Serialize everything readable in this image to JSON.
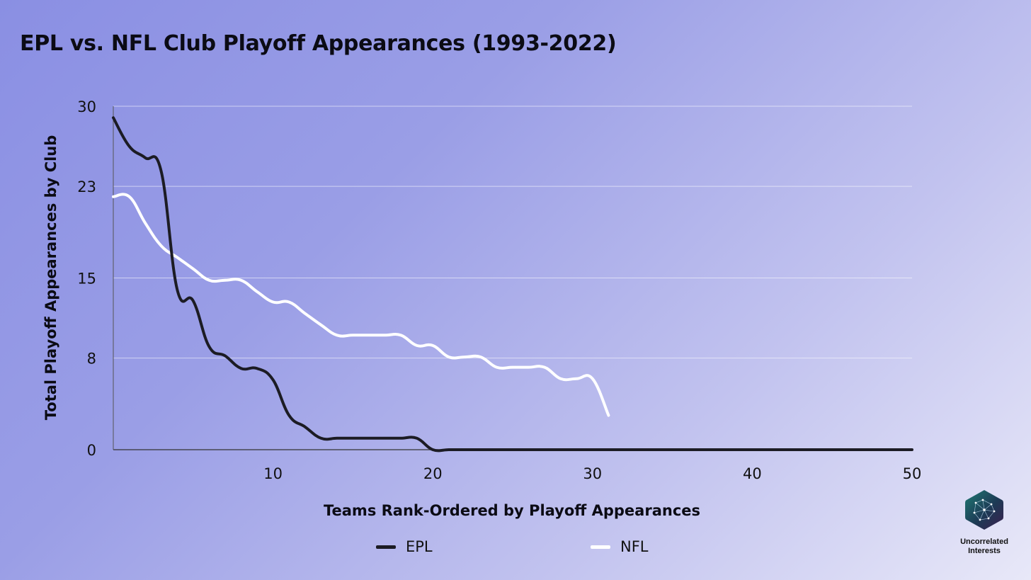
{
  "title": "EPL vs. NFL Club Playoff Appearances (1993-2022)",
  "logo_text": "Uncorrelated Interests",
  "chart_data": {
    "type": "line",
    "title": "EPL vs. NFL Club Playoff Appearances (1993-2022)",
    "xlabel": "Teams Rank-Ordered by Playoff Appearances",
    "ylabel": "Total Playoff Appearances by Club",
    "xlim": [
      0,
      50
    ],
    "ylim": [
      0,
      30
    ],
    "x_ticks": [
      10,
      20,
      30,
      40,
      50
    ],
    "y_ticks": [
      0,
      8,
      15,
      23,
      30
    ],
    "grid": "horizontal",
    "legend_position": "bottom",
    "series": [
      {
        "name": "EPL",
        "color": "#1c1c24",
        "x": [
          0,
          1,
          2,
          3,
          4,
          5,
          6,
          7,
          8,
          9,
          10,
          11,
          12,
          13,
          14,
          15,
          16,
          17,
          18,
          19,
          20,
          21,
          22,
          23,
          24,
          25,
          26,
          27,
          28,
          29,
          30,
          31,
          32,
          33,
          34,
          35,
          36,
          37,
          38,
          39,
          40,
          41,
          42,
          43,
          44,
          45,
          46,
          47,
          48,
          49,
          50
        ],
        "values": [
          29,
          26.5,
          25.5,
          24.3,
          14,
          13,
          9,
          8.2,
          7.1,
          7.1,
          6.1,
          3,
          2,
          1,
          1,
          1,
          1,
          1,
          1,
          1,
          0,
          0,
          0,
          0,
          0,
          0,
          0,
          0,
          0,
          0,
          0,
          0,
          0,
          0,
          0,
          0,
          0,
          0,
          0,
          0,
          0,
          0,
          0,
          0,
          0,
          0,
          0,
          0,
          0,
          0,
          0
        ]
      },
      {
        "name": "NFL",
        "color": "#ffffff",
        "x": [
          0,
          1,
          2,
          3,
          4,
          5,
          6,
          7,
          8,
          9,
          10,
          11,
          12,
          13,
          14,
          15,
          16,
          17,
          18,
          19,
          20,
          21,
          22,
          23,
          24,
          25,
          26,
          27,
          28,
          29,
          30,
          31
        ],
        "values": [
          22.1,
          22.1,
          19.8,
          17.8,
          16.8,
          15.8,
          14.8,
          14.8,
          14.8,
          13.8,
          12.9,
          12.9,
          11.9,
          10.9,
          10,
          10,
          10,
          10,
          10,
          9.1,
          9.1,
          8.1,
          8.1,
          8.1,
          7.2,
          7.2,
          7.2,
          7.2,
          6.2,
          6.2,
          6.2,
          3
        ]
      }
    ]
  }
}
